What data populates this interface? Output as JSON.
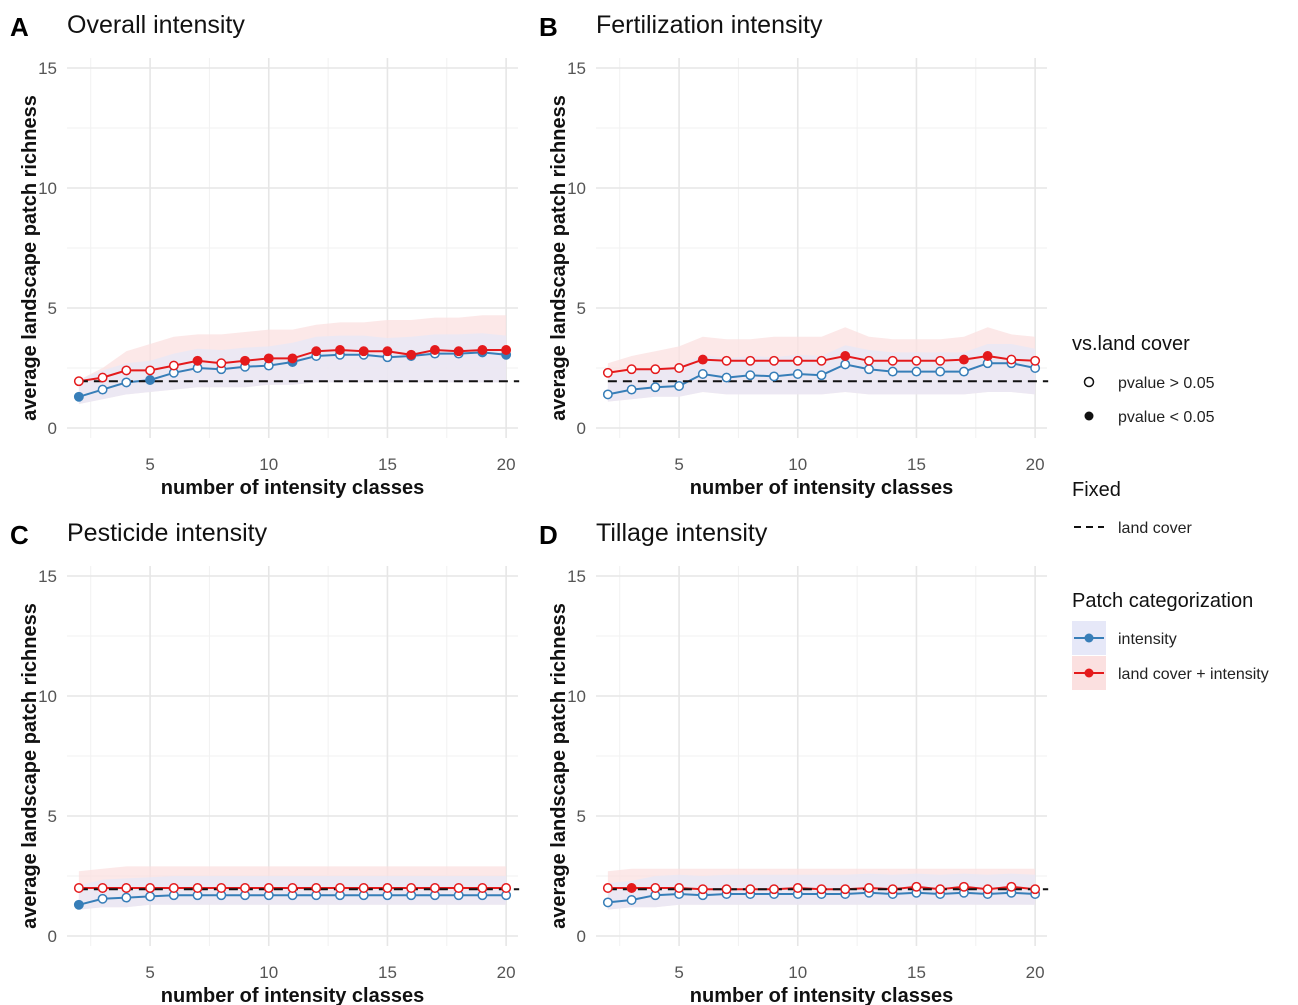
{
  "chart_data": [
    {
      "type": "line",
      "panel": "A",
      "title": "Overall intensity",
      "xlabel": "number of intensity classes",
      "ylabel": "average landscape patch richness",
      "xlim": [
        1.5,
        20.5
      ],
      "ylim": [
        0,
        15
      ],
      "xticks": [
        5,
        10,
        15,
        20
      ],
      "yticks": [
        0,
        5,
        10,
        15
      ],
      "fixed_line": 1.95,
      "x": [
        2,
        3,
        4,
        5,
        6,
        7,
        8,
        9,
        10,
        11,
        12,
        13,
        14,
        15,
        16,
        17,
        18,
        19,
        20
      ],
      "series": [
        {
          "name": "intensity",
          "color": "#377EB8",
          "values": [
            1.3,
            1.6,
            1.9,
            2.0,
            2.3,
            2.5,
            2.45,
            2.55,
            2.6,
            2.75,
            3.0,
            3.05,
            3.05,
            2.95,
            3.0,
            3.1,
            3.1,
            3.15,
            3.05
          ],
          "significant": [
            true,
            false,
            false,
            true,
            false,
            false,
            false,
            false,
            false,
            true,
            false,
            false,
            false,
            false,
            false,
            false,
            false,
            true,
            true
          ]
        },
        {
          "name": "land cover + intensity",
          "color": "#E41A1C",
          "values": [
            1.95,
            2.1,
            2.4,
            2.4,
            2.6,
            2.8,
            2.7,
            2.8,
            2.9,
            2.9,
            3.2,
            3.25,
            3.2,
            3.2,
            3.05,
            3.25,
            3.2,
            3.25,
            3.25
          ],
          "significant": [
            false,
            false,
            false,
            false,
            false,
            true,
            false,
            true,
            true,
            true,
            true,
            true,
            true,
            true,
            true,
            true,
            true,
            true,
            true
          ]
        }
      ],
      "band_upper": [
        2.0,
        2.5,
        3.2,
        3.5,
        3.8,
        3.9,
        3.9,
        4.0,
        4.1,
        4.1,
        4.3,
        4.4,
        4.4,
        4.5,
        4.5,
        4.6,
        4.6,
        4.7,
        4.7
      ],
      "band_lower": [
        1.0,
        1.2,
        1.4,
        1.5,
        1.6,
        1.7,
        1.7,
        1.7,
        1.8,
        1.8,
        1.9,
        1.9,
        1.9,
        1.9,
        1.9,
        1.9,
        1.9,
        1.9,
        1.9
      ]
    },
    {
      "type": "line",
      "panel": "B",
      "title": "Fertilization intensity",
      "xlabel": "number of intensity classes",
      "ylabel": "average landscape patch richness",
      "xlim": [
        1.5,
        20.5
      ],
      "ylim": [
        0,
        15
      ],
      "xticks": [
        5,
        10,
        15,
        20
      ],
      "yticks": [
        0,
        5,
        10,
        15
      ],
      "fixed_line": 1.95,
      "x": [
        2,
        3,
        4,
        5,
        6,
        7,
        8,
        9,
        10,
        11,
        12,
        13,
        14,
        15,
        16,
        17,
        18,
        19,
        20
      ],
      "series": [
        {
          "name": "intensity",
          "color": "#377EB8",
          "values": [
            1.4,
            1.6,
            1.7,
            1.75,
            2.25,
            2.1,
            2.2,
            2.15,
            2.25,
            2.2,
            2.65,
            2.45,
            2.35,
            2.35,
            2.35,
            2.35,
            2.7,
            2.7,
            2.5
          ],
          "significant": [
            false,
            false,
            false,
            false,
            false,
            false,
            false,
            false,
            false,
            false,
            false,
            false,
            false,
            false,
            false,
            false,
            false,
            false,
            false
          ]
        },
        {
          "name": "land cover + intensity",
          "color": "#E41A1C",
          "values": [
            2.3,
            2.45,
            2.45,
            2.5,
            2.85,
            2.8,
            2.8,
            2.8,
            2.8,
            2.8,
            3.0,
            2.8,
            2.8,
            2.8,
            2.8,
            2.85,
            3.0,
            2.85,
            2.8
          ],
          "significant": [
            false,
            false,
            false,
            false,
            true,
            false,
            false,
            false,
            false,
            false,
            true,
            false,
            false,
            false,
            false,
            true,
            true,
            false,
            false
          ]
        }
      ],
      "band_upper": [
        2.7,
        3.0,
        3.2,
        3.4,
        3.8,
        3.7,
        3.7,
        3.8,
        3.8,
        3.8,
        4.2,
        3.8,
        3.7,
        3.7,
        3.7,
        3.8,
        4.2,
        3.9,
        3.8
      ],
      "band_lower": [
        1.1,
        1.2,
        1.3,
        1.3,
        1.5,
        1.4,
        1.4,
        1.4,
        1.4,
        1.4,
        1.5,
        1.4,
        1.4,
        1.4,
        1.4,
        1.4,
        1.5,
        1.5,
        1.4
      ]
    },
    {
      "type": "line",
      "panel": "C",
      "title": "Pesticide intensity",
      "xlabel": "number of intensity classes",
      "ylabel": "average landscape patch richness",
      "xlim": [
        1.5,
        20.5
      ],
      "ylim": [
        0,
        15
      ],
      "xticks": [
        5,
        10,
        15,
        20
      ],
      "yticks": [
        0,
        5,
        10,
        15
      ],
      "fixed_line": 1.95,
      "x": [
        2,
        3,
        4,
        5,
        6,
        7,
        8,
        9,
        10,
        11,
        12,
        13,
        14,
        15,
        16,
        17,
        18,
        19,
        20
      ],
      "series": [
        {
          "name": "intensity",
          "color": "#377EB8",
          "values": [
            1.3,
            1.55,
            1.6,
            1.65,
            1.7,
            1.7,
            1.7,
            1.7,
            1.7,
            1.7,
            1.7,
            1.7,
            1.7,
            1.7,
            1.7,
            1.7,
            1.7,
            1.7,
            1.7
          ],
          "significant": [
            true,
            false,
            false,
            false,
            false,
            false,
            false,
            false,
            false,
            false,
            false,
            false,
            false,
            false,
            false,
            false,
            false,
            false,
            false
          ]
        },
        {
          "name": "land cover + intensity",
          "color": "#E41A1C",
          "values": [
            2.0,
            2.0,
            2.0,
            2.0,
            2.0,
            2.0,
            2.0,
            2.0,
            2.0,
            2.0,
            2.0,
            2.0,
            2.0,
            2.0,
            2.0,
            2.0,
            2.0,
            2.0,
            2.0
          ],
          "significant": [
            false,
            false,
            false,
            false,
            false,
            false,
            false,
            false,
            false,
            false,
            false,
            false,
            false,
            false,
            false,
            false,
            false,
            false,
            false
          ]
        }
      ],
      "band_upper": [
        2.7,
        2.8,
        2.9,
        2.9,
        2.9,
        2.9,
        2.9,
        2.9,
        2.9,
        2.9,
        2.9,
        2.9,
        2.9,
        2.9,
        2.9,
        2.9,
        2.9,
        2.9,
        2.9
      ],
      "band_lower": [
        1.1,
        1.2,
        1.2,
        1.3,
        1.3,
        1.3,
        1.3,
        1.3,
        1.3,
        1.3,
        1.3,
        1.3,
        1.3,
        1.3,
        1.3,
        1.3,
        1.3,
        1.3,
        1.3
      ]
    },
    {
      "type": "line",
      "panel": "D",
      "title": "Tillage intensity",
      "xlabel": "number of intensity classes",
      "ylabel": "average landscape patch richness",
      "xlim": [
        1.5,
        20.5
      ],
      "ylim": [
        0,
        15
      ],
      "xticks": [
        5,
        10,
        15,
        20
      ],
      "yticks": [
        0,
        5,
        10,
        15
      ],
      "fixed_line": 1.95,
      "x": [
        2,
        3,
        4,
        5,
        6,
        7,
        8,
        9,
        10,
        11,
        12,
        13,
        14,
        15,
        16,
        17,
        18,
        19,
        20
      ],
      "series": [
        {
          "name": "intensity",
          "color": "#377EB8",
          "values": [
            1.4,
            1.5,
            1.7,
            1.75,
            1.7,
            1.75,
            1.75,
            1.75,
            1.75,
            1.75,
            1.75,
            1.8,
            1.75,
            1.8,
            1.75,
            1.8,
            1.75,
            1.8,
            1.75
          ],
          "significant": [
            false,
            false,
            false,
            false,
            false,
            false,
            false,
            false,
            false,
            false,
            false,
            false,
            false,
            false,
            false,
            false,
            false,
            false,
            false
          ]
        },
        {
          "name": "land cover + intensity",
          "color": "#E41A1C",
          "values": [
            2.0,
            2.0,
            2.0,
            2.0,
            1.95,
            1.95,
            1.95,
            1.95,
            2.0,
            1.95,
            1.95,
            2.0,
            1.95,
            2.05,
            1.95,
            2.05,
            1.95,
            2.05,
            1.95
          ],
          "significant": [
            false,
            true,
            false,
            false,
            false,
            false,
            false,
            false,
            false,
            false,
            false,
            false,
            false,
            false,
            false,
            false,
            false,
            false,
            false
          ]
        }
      ],
      "band_upper": [
        2.7,
        2.8,
        2.8,
        2.8,
        2.8,
        2.8,
        2.8,
        2.8,
        2.8,
        2.8,
        2.8,
        2.8,
        2.8,
        2.8,
        2.8,
        2.8,
        2.8,
        2.8,
        2.8
      ],
      "band_lower": [
        1.1,
        1.2,
        1.2,
        1.3,
        1.3,
        1.3,
        1.3,
        1.3,
        1.3,
        1.3,
        1.3,
        1.3,
        1.3,
        1.3,
        1.3,
        1.3,
        1.3,
        1.3,
        1.3
      ]
    }
  ],
  "legend": {
    "vs_title": "vs.land cover",
    "vs_items": [
      "pvalue > 0.05",
      "pvalue < 0.05"
    ],
    "fixed_title": "Fixed",
    "fixed_items": [
      "land cover"
    ],
    "patch_title": "Patch categorization",
    "patch_items": [
      "intensity",
      "land cover + intensity"
    ]
  },
  "colors": {
    "intensity": "#377EB8",
    "land_cover_intensity": "#E41A1C",
    "band_intensity": "#E6E8F8",
    "band_land_cover": "#FBE0E0",
    "grid": "#E6E6E6"
  }
}
